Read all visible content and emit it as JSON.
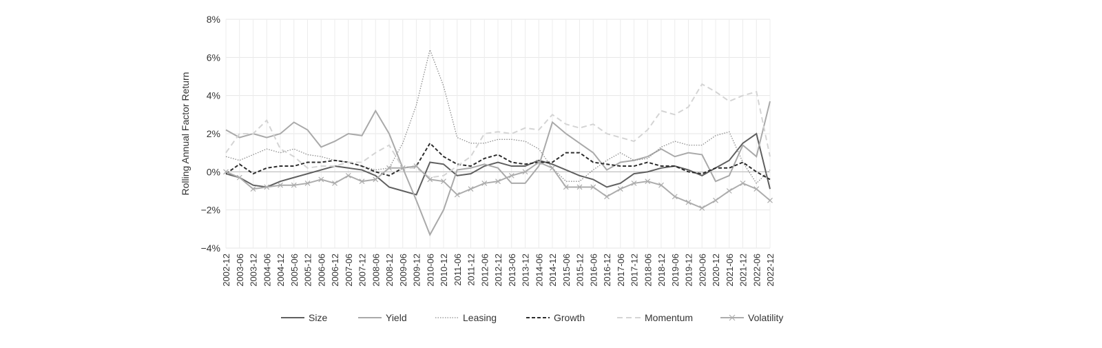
{
  "chart_data": {
    "type": "line",
    "title": "",
    "xlabel": "",
    "ylabel": "Rolling Annual Factor Return",
    "ylim": [
      -4,
      8
    ],
    "yticks": [
      "−4%",
      "−2%",
      "0%",
      "2%",
      "4%",
      "6%",
      "8%"
    ],
    "ytick_values": [
      -4,
      -2,
      0,
      2,
      4,
      6,
      8
    ],
    "grid": true,
    "legend": "bottom",
    "categories": [
      "2002-12",
      "2003-06",
      "2003-12",
      "2004-06",
      "2004-12",
      "2005-06",
      "2005-12",
      "2006-06",
      "2006-12",
      "2007-06",
      "2007-12",
      "2008-06",
      "2008-12",
      "2009-06",
      "2009-12",
      "2010-06",
      "2010-12",
      "2011-06",
      "2011-12",
      "2012-06",
      "2012-12",
      "2013-06",
      "2013-12",
      "2014-06",
      "2014-12",
      "2015-06",
      "2015-12",
      "2016-06",
      "2016-12",
      "2017-06",
      "2017-12",
      "2018-06",
      "2018-12",
      "2019-06",
      "2019-12",
      "2020-06",
      "2020-12",
      "2021-06",
      "2021-12",
      "2022-06",
      "2022-12"
    ],
    "series": [
      {
        "name": "Size",
        "color": "#5f5f5f",
        "style": "solid",
        "values": [
          -0.1,
          -0.3,
          -0.7,
          -0.8,
          -0.5,
          -0.3,
          -0.1,
          0.1,
          0.3,
          0.2,
          0.1,
          -0.2,
          -0.8,
          -1.0,
          -1.2,
          0.5,
          0.4,
          -0.2,
          -0.1,
          0.3,
          0.5,
          0.3,
          0.3,
          0.6,
          0.4,
          0.1,
          -0.2,
          -0.4,
          -0.8,
          -0.6,
          -0.1,
          0.0,
          0.2,
          0.3,
          0.1,
          -0.2,
          0.2,
          0.6,
          1.5,
          2.0,
          -0.9
        ]
      },
      {
        "name": "Yield",
        "color": "#a9a9a9",
        "style": "solid",
        "values": [
          2.2,
          1.8,
          2.0,
          1.8,
          2.0,
          2.6,
          2.2,
          1.3,
          1.6,
          2.0,
          1.9,
          3.2,
          2.0,
          0.2,
          -1.5,
          -3.3,
          -2.0,
          0.1,
          0.2,
          0.4,
          0.2,
          -0.6,
          -0.6,
          0.3,
          2.6,
          2.0,
          1.5,
          1.0,
          0.1,
          0.5,
          0.6,
          0.8,
          1.2,
          0.8,
          1.0,
          0.9,
          -0.5,
          -0.2,
          1.4,
          0.8,
          3.7
        ]
      },
      {
        "name": "Leasing",
        "color": "#8a8a8a",
        "style": "dotted",
        "values": [
          0.8,
          0.6,
          0.9,
          1.2,
          1.0,
          1.2,
          0.9,
          0.8,
          0.6,
          0.5,
          0.3,
          0.1,
          0.2,
          1.5,
          3.5,
          6.4,
          4.5,
          1.8,
          1.5,
          1.5,
          1.7,
          1.7,
          1.6,
          1.2,
          0.2,
          -0.5,
          -0.5,
          0.1,
          0.6,
          1.0,
          0.6,
          0.7,
          1.3,
          1.6,
          1.4,
          1.4,
          1.9,
          2.1,
          0.5,
          -0.6,
          0.1
        ]
      },
      {
        "name": "Growth",
        "color": "#2b2b2b",
        "style": "dashed",
        "values": [
          -0.1,
          0.4,
          -0.1,
          0.2,
          0.3,
          0.3,
          0.5,
          0.5,
          0.6,
          0.5,
          0.3,
          0.0,
          -0.2,
          0.2,
          0.3,
          1.5,
          0.8,
          0.4,
          0.3,
          0.7,
          0.9,
          0.5,
          0.4,
          0.5,
          0.5,
          1.0,
          1.0,
          0.5,
          0.4,
          0.3,
          0.3,
          0.5,
          0.3,
          0.3,
          0.0,
          -0.1,
          0.2,
          0.2,
          0.5,
          0.0,
          -0.4
        ]
      },
      {
        "name": "Momentum",
        "color": "#d4d4d4",
        "style": "longdash",
        "values": [
          1.0,
          2.0,
          2.0,
          2.7,
          1.2,
          0.8,
          0.2,
          0.3,
          0.3,
          0.5,
          0.5,
          1.0,
          1.4,
          0.2,
          0.2,
          -0.3,
          -0.2,
          0.3,
          0.8,
          2.0,
          2.1,
          2.0,
          2.3,
          2.2,
          3.0,
          2.5,
          2.3,
          2.5,
          2.0,
          1.8,
          1.6,
          2.2,
          3.2,
          3.0,
          3.4,
          4.6,
          4.2,
          3.7,
          4.0,
          4.2,
          0.8
        ]
      },
      {
        "name": "Volatility",
        "color": "#acacac",
        "style": "solid-x",
        "values": [
          0.0,
          -0.3,
          -0.9,
          -0.8,
          -0.7,
          -0.7,
          -0.6,
          -0.4,
          -0.6,
          -0.2,
          -0.5,
          -0.4,
          0.2,
          0.2,
          0.3,
          -0.4,
          -0.5,
          -1.2,
          -0.9,
          -0.6,
          -0.5,
          -0.2,
          0.0,
          0.5,
          0.2,
          -0.8,
          -0.8,
          -0.8,
          -1.3,
          -0.9,
          -0.6,
          -0.5,
          -0.7,
          -1.3,
          -1.6,
          -1.9,
          -1.5,
          -1.0,
          -0.6,
          -0.9,
          -1.5
        ]
      }
    ]
  }
}
